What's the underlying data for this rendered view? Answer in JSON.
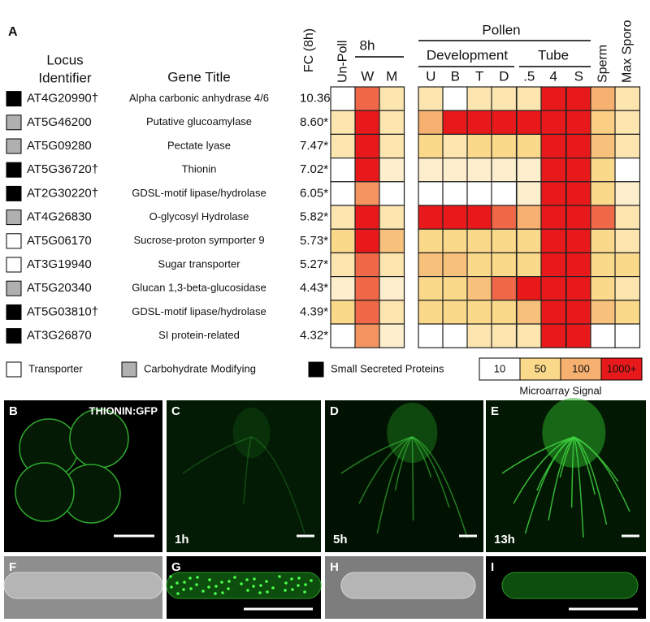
{
  "figure": {
    "panel_a": "A",
    "locus_header": [
      "Locus",
      "Identifier"
    ],
    "title_header": "Gene Title",
    "fc_header": "FC (8h)",
    "h8": "8h",
    "pollen": "Pollen",
    "development": "Development",
    "tube": "Tube",
    "columns": [
      "Un-Poll",
      "W",
      "M",
      "U",
      "B",
      "T",
      "D",
      ".5",
      "4",
      "S",
      "Sperm",
      "Max Sporo"
    ],
    "rows": [
      {
        "color": "#000000",
        "locus": "AT4G20990†",
        "title": "Alpha carbonic anhydrase 4/6",
        "fc": "10.36*",
        "signal": [
          10,
          300,
          30,
          30,
          10,
          30,
          30,
          30,
          1000,
          1000,
          100,
          30
        ]
      },
      {
        "color": "#b0b0b0",
        "locus": "AT5G46200",
        "title": "Putative glucoamylase",
        "fc": "8.60*",
        "signal": [
          30,
          1000,
          30,
          100,
          1000,
          1000,
          1000,
          1000,
          1000,
          1000,
          60,
          30
        ]
      },
      {
        "color": "#b0b0b0",
        "locus": "AT5G09280",
        "title": "Pectate lyase",
        "fc": "7.47*",
        "signal": [
          30,
          1000,
          30,
          50,
          30,
          50,
          50,
          50,
          1000,
          1000,
          75,
          30
        ]
      },
      {
        "color": "#000000",
        "locus": "AT5G36720†",
        "title": "Thionin",
        "fc": "7.02*",
        "signal": [
          10,
          1000,
          20,
          20,
          20,
          20,
          20,
          20,
          1000,
          1000,
          50,
          10
        ]
      },
      {
        "color": "#000000",
        "locus": "AT2G30220†",
        "title": "GDSL-motif lipase/hydrolase",
        "fc": "6.05*",
        "signal": [
          10,
          150,
          10,
          10,
          10,
          10,
          10,
          20,
          1000,
          1000,
          50,
          20
        ]
      },
      {
        "color": "#b0b0b0",
        "locus": "AT4G26830",
        "title": "O-glycosyl Hydrolase",
        "fc": "5.82*",
        "signal": [
          30,
          1000,
          30,
          1000,
          1000,
          1000,
          300,
          100,
          1000,
          1000,
          300,
          30
        ]
      },
      {
        "color": "#ffffff",
        "locus": "AT5G06170",
        "title": "Sucrose-proton symporter 9",
        "fc": "5.73*",
        "signal": [
          50,
          1000,
          75,
          50,
          50,
          50,
          50,
          50,
          1000,
          1000,
          50,
          30
        ]
      },
      {
        "color": "#ffffff",
        "locus": "AT3G19940",
        "title": "Sugar transporter",
        "fc": "5.27*",
        "signal": [
          30,
          300,
          30,
          75,
          75,
          50,
          50,
          50,
          1000,
          1000,
          50,
          50
        ]
      },
      {
        "color": "#b0b0b0",
        "locus": "AT5G20340",
        "title": "Glucan 1,3-beta-glucosidase",
        "fc": "4.43*",
        "signal": [
          20,
          300,
          20,
          50,
          50,
          75,
          300,
          1000,
          1000,
          1000,
          50,
          30
        ]
      },
      {
        "color": "#000000",
        "locus": "AT5G03810†",
        "title": "GDSL-motif lipase/hydrolase",
        "fc": "4.39*",
        "signal": [
          50,
          300,
          30,
          50,
          50,
          50,
          50,
          75,
          1000,
          1000,
          75,
          50
        ]
      },
      {
        "color": "#000000",
        "locus": "AT3G26870",
        "title": "SI protein-related",
        "fc": "4.32*",
        "signal": [
          10,
          150,
          20,
          10,
          10,
          30,
          30,
          30,
          1000,
          1000,
          10,
          10
        ]
      }
    ],
    "classes": [
      {
        "name": "Transporter",
        "color": "#ffffff"
      },
      {
        "name": "Carbohydrate Modifying",
        "color": "#b0b0b0"
      },
      {
        "name": "Small Secreted Proteins",
        "color": "#000000"
      }
    ],
    "scale": {
      "title": "Microarray Signal",
      "ticks": [
        10,
        50,
        100,
        {
          "value": 1000,
          "label": "1000+"
        }
      ],
      "colors": [
        "#ffffff",
        "#fbd98a",
        "#f6b070",
        "#e8191b"
      ]
    },
    "panels": [
      {
        "label": "B",
        "caption": "THIONIN:GFP"
      },
      {
        "label": "C",
        "time": "1h"
      },
      {
        "label": "D",
        "time": "5h"
      },
      {
        "label": "E",
        "time": "13h"
      },
      {
        "label": "F"
      },
      {
        "label": "G"
      },
      {
        "label": "H"
      },
      {
        "label": "I"
      }
    ]
  }
}
